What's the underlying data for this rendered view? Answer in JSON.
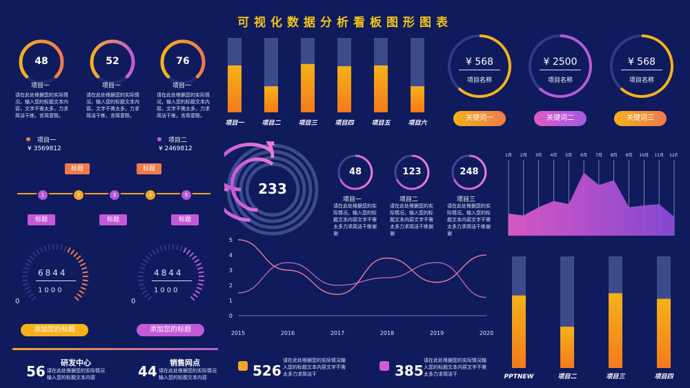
{
  "title": "可视化数据分析看板图形图表",
  "gauges_top": [
    {
      "value": "48",
      "label": "项目一",
      "pct": 0.48,
      "desc": "请在此处根据您的实际情况，输入您的标题文本内容，文字不需太多，力求简洁干练，言简意赅。"
    },
    {
      "value": "52",
      "label": "项目一",
      "pct": 0.52,
      "desc": "请在此处根据您的实际情况，输入您的标题文本内容，文字不需太多，力求简洁干练，言简意赅。"
    },
    {
      "value": "76",
      "label": "项目一",
      "pct": 0.76,
      "desc": "请在此处根据您的实际情况，输入您的标题文本内容，文字不需太多，力求简洁干练，言简意赅。"
    }
  ],
  "legend_items": [
    {
      "label": "项目一",
      "value": "¥ 3569812",
      "color": "#f07a4a"
    },
    {
      "label": "项目二",
      "value": "¥ 2469812",
      "color": "#c25ad8"
    }
  ],
  "timeline": {
    "nodes": [
      "1",
      "2",
      "3",
      "4",
      "5"
    ],
    "top_tags": [
      "标题",
      "标题"
    ],
    "bottom_tags": [
      "标题",
      "标题",
      "标题"
    ]
  },
  "dials": [
    {
      "value": "6844",
      "sub": "1000",
      "zero": "0",
      "button": "添加您的标题"
    },
    {
      "value": "4844",
      "sub": "1000",
      "zero": "0",
      "button": "添加您的标题"
    }
  ],
  "bottom_stats": [
    {
      "value": "56",
      "title": "研发中心",
      "desc": "请在此处根据您的实际情况输入您的标题文本内容"
    },
    {
      "value": "44",
      "title": "销售网点",
      "desc": "请在此处根据您的实际情况输入您的标题文本内容"
    }
  ],
  "mid_stats": [
    {
      "value": "526",
      "desc": "请在此处根据您的实际情况输入您的标题文本内容文字不需太多力求简洁干",
      "color": "#f5a623"
    },
    {
      "value": "385",
      "desc": "请在此处根据您的实际情况输入您的标题文本内容文字不需太多力求简洁干",
      "color": "#d25bd8"
    }
  ],
  "rings": [
    {
      "value": "¥ 568",
      "label": "项目名称",
      "color": "#f5b21a",
      "pct": 0.62
    },
    {
      "value": "¥ 2500",
      "label": "项目名称",
      "color": "#b45bd8",
      "pct": 0.62
    },
    {
      "value": "¥ 568",
      "label": "项目名称",
      "color": "#f5b21a",
      "pct": 0.62
    }
  ],
  "keyword_buttons": [
    "关键词一",
    "关键词二",
    "关键词三"
  ],
  "concentric": {
    "value": "233"
  },
  "small_circles": [
    {
      "value": "48",
      "label": "项目一",
      "desc": "请在此处根据您的实际情况，输入您的标题文本内容文字不需太多力求简洁干练谢谢"
    },
    {
      "value": "123",
      "label": "项目二",
      "desc": "请在此处根据您的实际情况，输入您的标题文本内容文字不需太多力求简洁干练谢谢"
    },
    {
      "value": "248",
      "label": "项目三",
      "desc": "请在此处根据您的实际情况，输入您的标题文本内容文字不需太多力求简洁干练谢谢"
    }
  ],
  "chart_data": [
    {
      "type": "bar",
      "categories": [
        "项目一",
        "项目二",
        "项目三",
        "项目四",
        "项目五",
        "项目六"
      ],
      "values": [
        63,
        35,
        65,
        62,
        63,
        35
      ],
      "ylim": [
        0,
        100
      ]
    },
    {
      "type": "line",
      "x": [
        "2015",
        "2016",
        "2017",
        "2018",
        "2019",
        "2020"
      ],
      "yticks": [
        "0",
        "1",
        "2",
        "3",
        "4",
        "5"
      ],
      "ylim": [
        0,
        5
      ],
      "series": [
        {
          "values": [
            1.5,
            3.5,
            2.0,
            2.5,
            3.5,
            1.2
          ],
          "color": "#b15fb8"
        },
        {
          "values": [
            5.0,
            3.0,
            1.4,
            3.8,
            2.2,
            4.0
          ],
          "color": "#e07aa0"
        }
      ]
    },
    {
      "type": "area",
      "x": [
        "1月",
        "2月",
        "3月",
        "4月",
        "5月",
        "6月",
        "7月",
        "8月",
        "9月",
        "10月",
        "11月",
        "12月"
      ],
      "values": [
        3.5,
        3.2,
        4.5,
        5.5,
        5.0,
        10.0,
        8.0,
        8.8,
        4.5,
        4.8,
        5.0,
        3.0
      ],
      "ylim": [
        0,
        12
      ]
    },
    {
      "type": "bar",
      "categories": [
        "PPTNEW",
        "项目二",
        "项目三",
        "项目四"
      ],
      "values": [
        65,
        37,
        67,
        62
      ],
      "ylim": [
        0,
        100
      ]
    }
  ]
}
